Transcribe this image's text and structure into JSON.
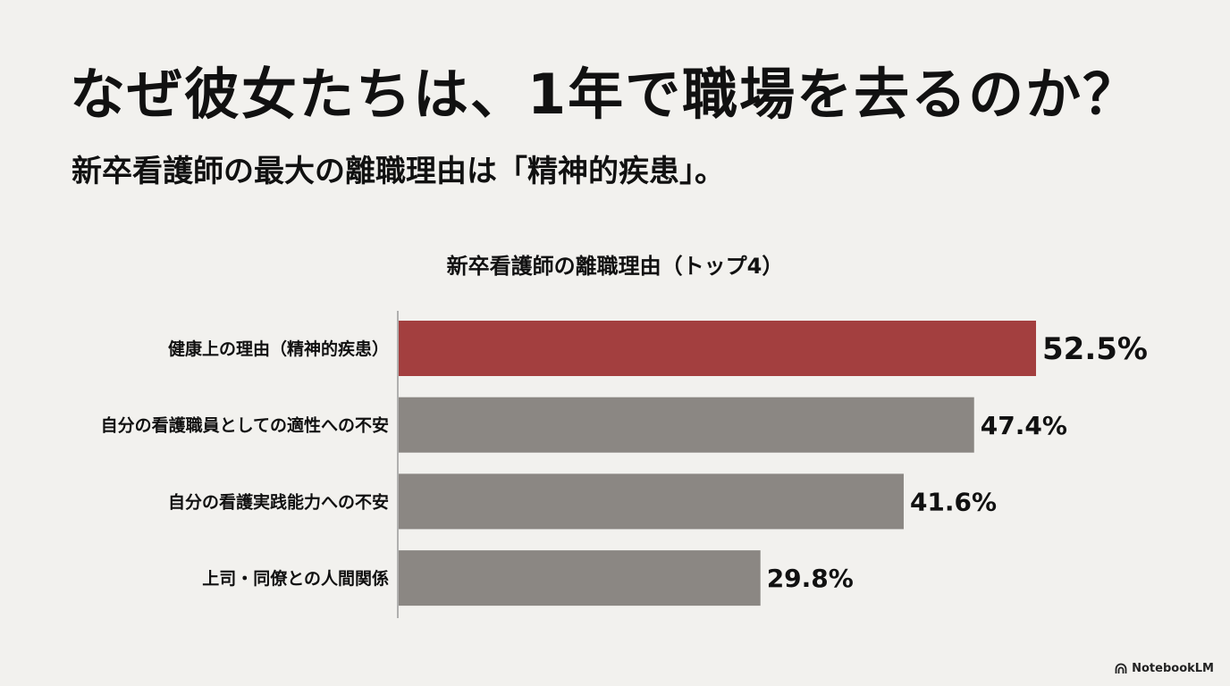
{
  "title": "なぜ彼女たちは、1年で職場を去るのか？",
  "subtitle": "新卒看護師の最大の離職理由は「精神的疾患」。",
  "brand": "NotebookLM",
  "chart_data": {
    "type": "bar",
    "orientation": "horizontal",
    "title": "新卒看護師の離職理由（トップ4）",
    "categories": [
      "健康上の理由（精神的疾患）",
      "自分の看護職員としての適性への不安",
      "自分の看護実践能力への不安",
      "上司・同僚との人間関係"
    ],
    "values": [
      52.5,
      47.4,
      41.6,
      29.8
    ],
    "value_labels": [
      "52.5%",
      "47.4%",
      "41.6%",
      "29.8%"
    ],
    "xlim": [
      0,
      60
    ],
    "highlight_index": 0,
    "colors": {
      "highlight": "#a33f3f",
      "default": "#8b8783",
      "axis": "#9a9a9a"
    },
    "grid": false,
    "legend": "none"
  }
}
